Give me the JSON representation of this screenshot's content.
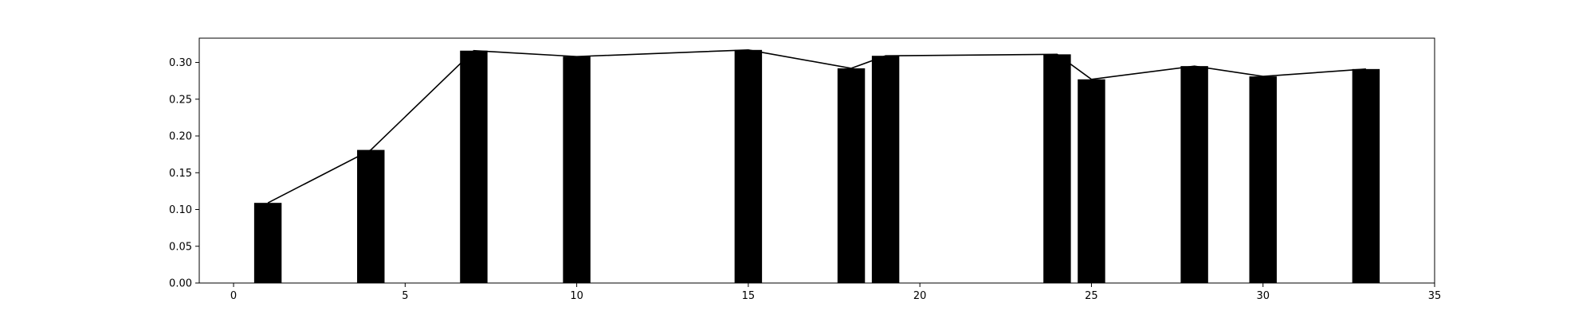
{
  "chart_data": {
    "type": "bar",
    "title": "",
    "xlabel": "",
    "ylabel": "",
    "xlim": [
      -1,
      35
    ],
    "ylim": [
      0,
      0.333
    ],
    "grid": false,
    "bar_width": 0.8,
    "bar_color": "#000000",
    "line_color": "#000000",
    "x": [
      1,
      4,
      7,
      10,
      15,
      18,
      19,
      24,
      25,
      28,
      30,
      33
    ],
    "values": [
      0.109,
      0.181,
      0.316,
      0.308,
      0.317,
      0.292,
      0.309,
      0.311,
      0.277,
      0.295,
      0.281,
      0.291
    ],
    "x_ticks": [
      0,
      5,
      10,
      15,
      20,
      25,
      30,
      35
    ],
    "x_tick_labels": [
      "0",
      "5",
      "10",
      "15",
      "20",
      "25",
      "30",
      "35"
    ],
    "y_ticks": [
      0.0,
      0.05,
      0.1,
      0.15,
      0.2,
      0.25,
      0.3
    ],
    "y_tick_labels": [
      "0.00",
      "0.05",
      "0.10",
      "0.15",
      "0.20",
      "0.25",
      "0.30"
    ]
  }
}
